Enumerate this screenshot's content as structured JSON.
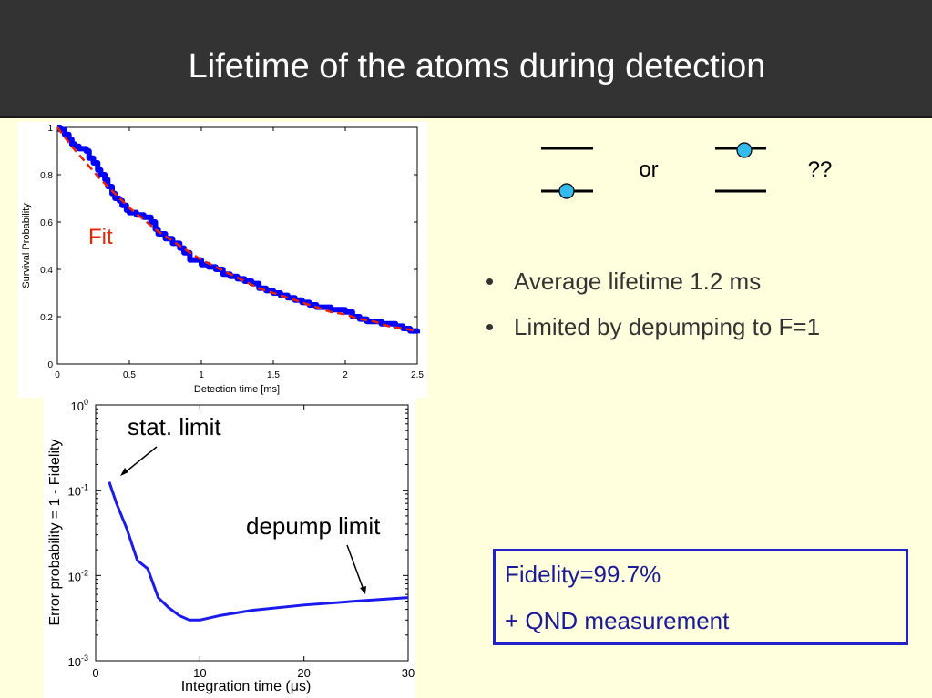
{
  "header": {
    "title": "Lifetime of the atoms during detection"
  },
  "levels": {
    "or_label": "or",
    "question_label": "??"
  },
  "bullets": [
    {
      "text": "Average lifetime 1.2 ms"
    },
    {
      "text": "Limited by depumping to F=1"
    }
  ],
  "fidelity_box": {
    "line1": "Fidelity=99.7%",
    "line2": "+ QND measurement"
  },
  "colors": {
    "header_bg": "#333333",
    "slide_bg": "#ffffdd",
    "data_blue": "#0000ff",
    "fit_red": "#ee2200",
    "box_border": "#2222cc",
    "atom": "#33bbee"
  },
  "chart_data": [
    {
      "type": "line",
      "xlabel": "Detection time [ms]",
      "ylabel": "Survival Probability",
      "xlim": [
        0,
        2.5
      ],
      "ylim": [
        0,
        1
      ],
      "xticks": [
        "0",
        "0.5",
        "1",
        "1.5",
        "2",
        "2.5"
      ],
      "yticks": [
        "0",
        "0.2",
        "0.4",
        "0.6",
        "0.8",
        "1"
      ],
      "annotation": "Fit",
      "series": [
        {
          "role": "data",
          "color": "#0000ff",
          "step": true,
          "x": [
            0,
            0.02,
            0.05,
            0.08,
            0.1,
            0.12,
            0.15,
            0.2,
            0.22,
            0.25,
            0.28,
            0.3,
            0.33,
            0.35,
            0.38,
            0.4,
            0.43,
            0.45,
            0.48,
            0.5,
            0.55,
            0.6,
            0.65,
            0.68,
            0.7,
            0.75,
            0.8,
            0.85,
            0.88,
            0.92,
            1.0,
            1.05,
            1.1,
            1.15,
            1.2,
            1.25,
            1.3,
            1.35,
            1.4,
            1.45,
            1.5,
            1.55,
            1.6,
            1.65,
            1.7,
            1.75,
            1.8,
            1.85,
            1.9,
            1.95,
            2.0,
            2.05,
            2.1,
            2.15,
            2.2,
            2.25,
            2.3,
            2.35,
            2.4,
            2.45,
            2.5
          ],
          "y": [
            1.0,
            0.99,
            0.97,
            0.95,
            0.93,
            0.92,
            0.91,
            0.9,
            0.87,
            0.85,
            0.82,
            0.8,
            0.78,
            0.75,
            0.72,
            0.7,
            0.69,
            0.67,
            0.65,
            0.64,
            0.63,
            0.62,
            0.6,
            0.57,
            0.55,
            0.53,
            0.51,
            0.49,
            0.47,
            0.44,
            0.42,
            0.41,
            0.4,
            0.38,
            0.37,
            0.36,
            0.35,
            0.34,
            0.32,
            0.31,
            0.3,
            0.29,
            0.28,
            0.27,
            0.26,
            0.25,
            0.24,
            0.24,
            0.23,
            0.23,
            0.22,
            0.2,
            0.19,
            0.18,
            0.18,
            0.17,
            0.17,
            0.16,
            0.15,
            0.14,
            0.13
          ]
        },
        {
          "role": "fit",
          "color": "#ee2200",
          "dashed": true,
          "x": [
            0,
            0.1,
            0.2,
            0.3,
            0.4,
            0.5,
            0.6,
            0.7,
            0.8,
            0.9,
            1.0,
            1.1,
            1.2,
            1.3,
            1.4,
            1.5,
            1.6,
            1.7,
            1.8,
            1.9,
            2.0,
            2.1,
            2.2,
            2.3,
            2.4,
            2.5
          ],
          "y": [
            1.0,
            0.92,
            0.85,
            0.78,
            0.72,
            0.66,
            0.61,
            0.56,
            0.52,
            0.48,
            0.44,
            0.41,
            0.38,
            0.35,
            0.32,
            0.3,
            0.28,
            0.26,
            0.24,
            0.22,
            0.21,
            0.19,
            0.18,
            0.16,
            0.15,
            0.14
          ]
        }
      ]
    },
    {
      "type": "line",
      "xlabel": "Integration time (μs)",
      "ylabel": "Error probability = 1 - Fidelity",
      "xlim": [
        0,
        30
      ],
      "ylim": [
        0.001,
        1
      ],
      "yscale": "log",
      "xticks": [
        "0",
        "10",
        "20",
        "30"
      ],
      "yticks": [
        "10^0",
        "10^-1",
        "10^-2",
        "10^-3"
      ],
      "annotations": [
        "stat. limit",
        "depump limit"
      ],
      "series": [
        {
          "color": "#1a1aee",
          "x": [
            1.3,
            2,
            3,
            4,
            5,
            6,
            7,
            8,
            9,
            10,
            12,
            15,
            20,
            25,
            30
          ],
          "y": [
            0.125,
            0.07,
            0.035,
            0.015,
            0.012,
            0.0055,
            0.0042,
            0.0034,
            0.003,
            0.003,
            0.0034,
            0.0039,
            0.0045,
            0.005,
            0.0055
          ]
        }
      ]
    }
  ]
}
